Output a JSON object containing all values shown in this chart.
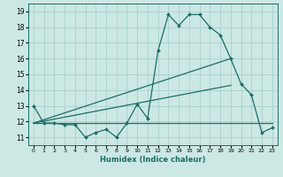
{
  "xlabel": "Humidex (Indice chaleur)",
  "bg_color": "#cce8e4",
  "grid_color": "#aacfcc",
  "line_color": "#1a6e65",
  "xlim": [
    -0.5,
    23.5
  ],
  "ylim": [
    10.5,
    19.5
  ],
  "xticks": [
    0,
    1,
    2,
    3,
    4,
    5,
    6,
    7,
    8,
    9,
    10,
    11,
    12,
    13,
    14,
    15,
    16,
    17,
    18,
    19,
    20,
    21,
    22,
    23
  ],
  "yticks": [
    11,
    12,
    13,
    14,
    15,
    16,
    17,
    18,
    19
  ],
  "line1_x": [
    0,
    1,
    2,
    3,
    4,
    5,
    6,
    7,
    8,
    9,
    10,
    11,
    12,
    13,
    14,
    15,
    16,
    17,
    18,
    19,
    20,
    21,
    22,
    23
  ],
  "line1_y": [
    13.0,
    11.9,
    11.9,
    11.8,
    11.8,
    11.0,
    11.3,
    11.5,
    11.0,
    11.9,
    13.1,
    12.2,
    16.5,
    18.8,
    18.1,
    18.8,
    18.8,
    18.0,
    17.5,
    16.0,
    14.4,
    13.7,
    11.3,
    11.6
  ],
  "line2_x": [
    0,
    23
  ],
  "line2_y": [
    11.9,
    11.9
  ],
  "line3_x": [
    0,
    19
  ],
  "line3_y": [
    11.9,
    14.3
  ],
  "line4_x": [
    0,
    19
  ],
  "line4_y": [
    11.9,
    16.0
  ]
}
